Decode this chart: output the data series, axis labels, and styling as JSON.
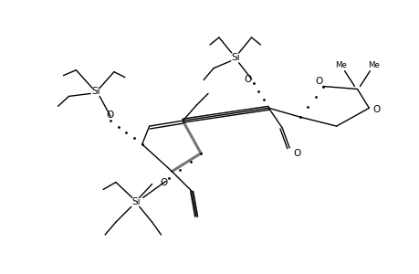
{
  "bg": "#ffffff",
  "lc": "#000000",
  "lw": 1.0,
  "fs": 7.5,
  "fs2": 6.2,
  "figsize": [
    4.6,
    3.0
  ],
  "dpi": 100,
  "xlim": [
    0,
    460
  ],
  "ylim": [
    0,
    300
  ]
}
